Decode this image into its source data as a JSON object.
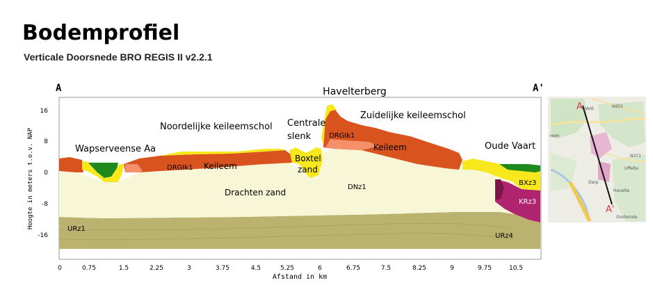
{
  "header": {
    "title": "Bodemprofiel",
    "subtitle": "Verticale Doorsnede BRO REGIS II v2.2.1"
  },
  "section": {
    "start_label": "A",
    "end_label": "A'",
    "y_axis_label": "Hoogte in meters t.o.v. NAP",
    "x_axis_label": "Afstand in km",
    "y_ticks": [
      "16",
      "8",
      "0",
      "-8",
      "-16"
    ],
    "x_ticks": [
      "0",
      "0.75",
      "1.5",
      "2.25",
      "3",
      "3.75",
      "4.5",
      "5.25",
      "6",
      "6.75",
      "7.5",
      "8.25",
      "9",
      "9.75",
      "10.5"
    ]
  },
  "annotations": {
    "havelterberg": "Havelterberg",
    "wapserveense_aa": "Wapserveense Aa",
    "noordelijke": "Noordelijke keileemschol",
    "centrale_line1": "Centrale",
    "centrale_line2": "slenk",
    "zuidelijke": "Zuidelijke keileemschol",
    "oude_vaart": "Oude Vaart",
    "boxtel_line1": "Boxtel",
    "boxtel_line2": "zand",
    "drachten_zand": "Drachten zand",
    "keileem_left": "Keileem",
    "keileem_right": "Keileem"
  },
  "unit_labels": {
    "drgik1_left": "DRGIk1",
    "drgik1_right": "DRGIk1",
    "dnz1": "DNz1",
    "urz1": "URz1",
    "urz4": "URz4",
    "bxz3": "BXz3",
    "krz3": "KRz3"
  },
  "colors": {
    "drgik1": "#D9531E",
    "keileem_light": "#F5916A",
    "boxtel": "#F7E81E",
    "drachten": "#F7F6D6",
    "urk": "#BCB26F",
    "holocene": "#1E8A1E",
    "kreftenheye": "#B0236E",
    "kreftenheye_dark": "#7A1748"
  },
  "inset_map": {
    "label_a": "A",
    "label_a_prime": "A'",
    "places": [
      "Veld",
      "N855",
      "veen",
      "N371",
      "Uffelte",
      "Darp",
      "Havelte",
      "Oosteinde"
    ]
  }
}
